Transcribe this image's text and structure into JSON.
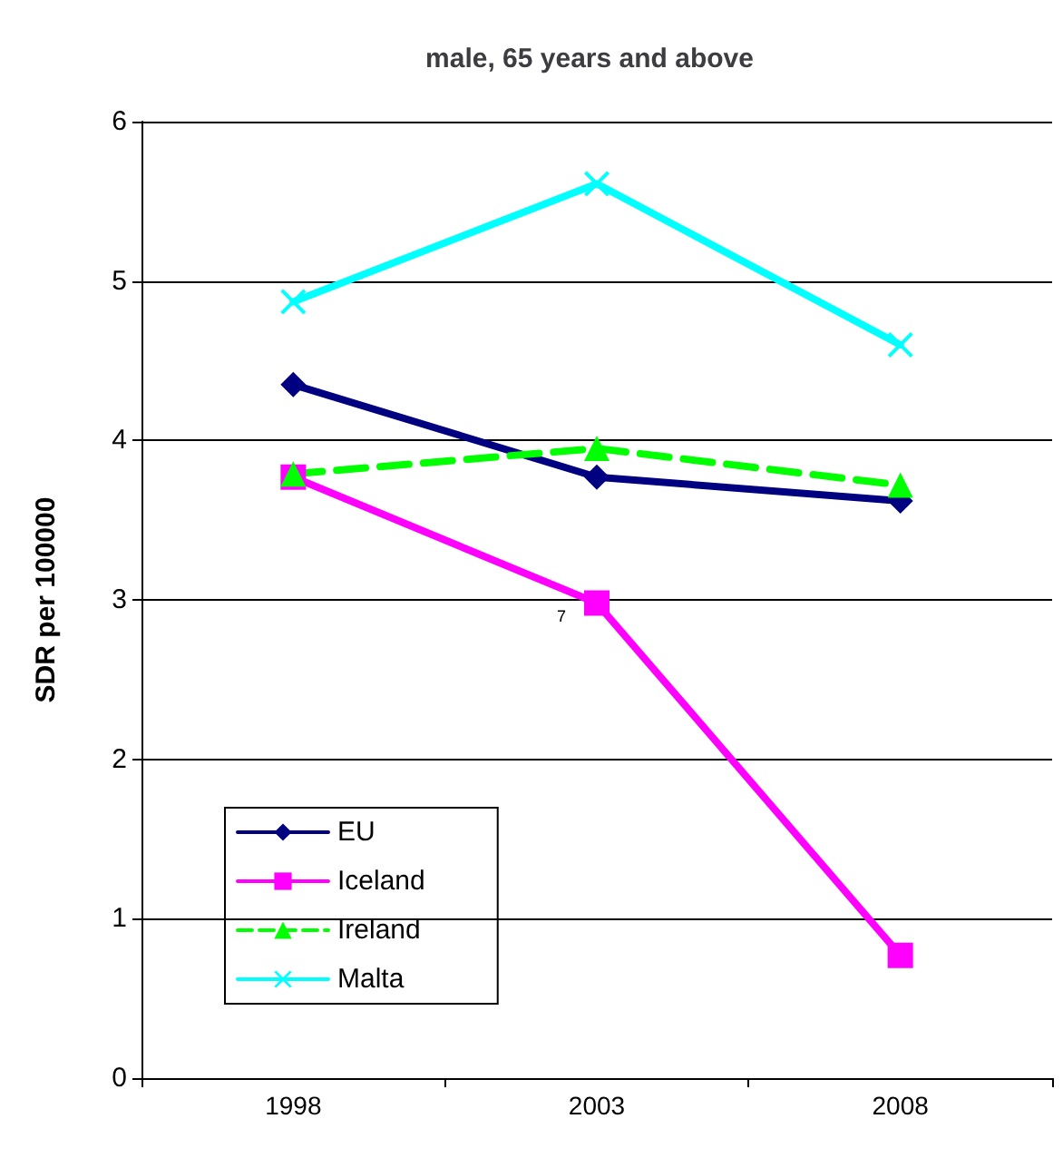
{
  "chart_data": {
    "type": "line",
    "title": "male, 65 years and above",
    "ylabel": "SDR per 100000",
    "categories": [
      "1998",
      "2003",
      "2008"
    ],
    "series": [
      {
        "name": "EU",
        "color": "#000080",
        "values": [
          4.35,
          3.77,
          3.62
        ],
        "marker": "diamond",
        "line_style": "solid"
      },
      {
        "name": "Iceland",
        "color": "#ff00ff",
        "values": [
          3.77,
          2.98,
          0.77
        ],
        "marker": "square",
        "line_style": "solid"
      },
      {
        "name": "Ireland",
        "color": "#00ff00",
        "values": [
          3.79,
          3.95,
          3.72
        ],
        "marker": "triangle",
        "line_style": "dashed"
      },
      {
        "name": "Malta",
        "color": "#00ffff",
        "values": [
          4.87,
          5.61,
          4.6
        ],
        "marker": "cross",
        "line_style": "solid"
      }
    ],
    "ylim": [
      0,
      6
    ],
    "yticks": [
      0,
      1,
      2,
      3,
      4,
      5,
      6
    ],
    "grid": "y",
    "legend": "bottom left",
    "annotations": [
      {
        "text": "7",
        "x": "2003",
        "y": 2.95
      }
    ]
  }
}
